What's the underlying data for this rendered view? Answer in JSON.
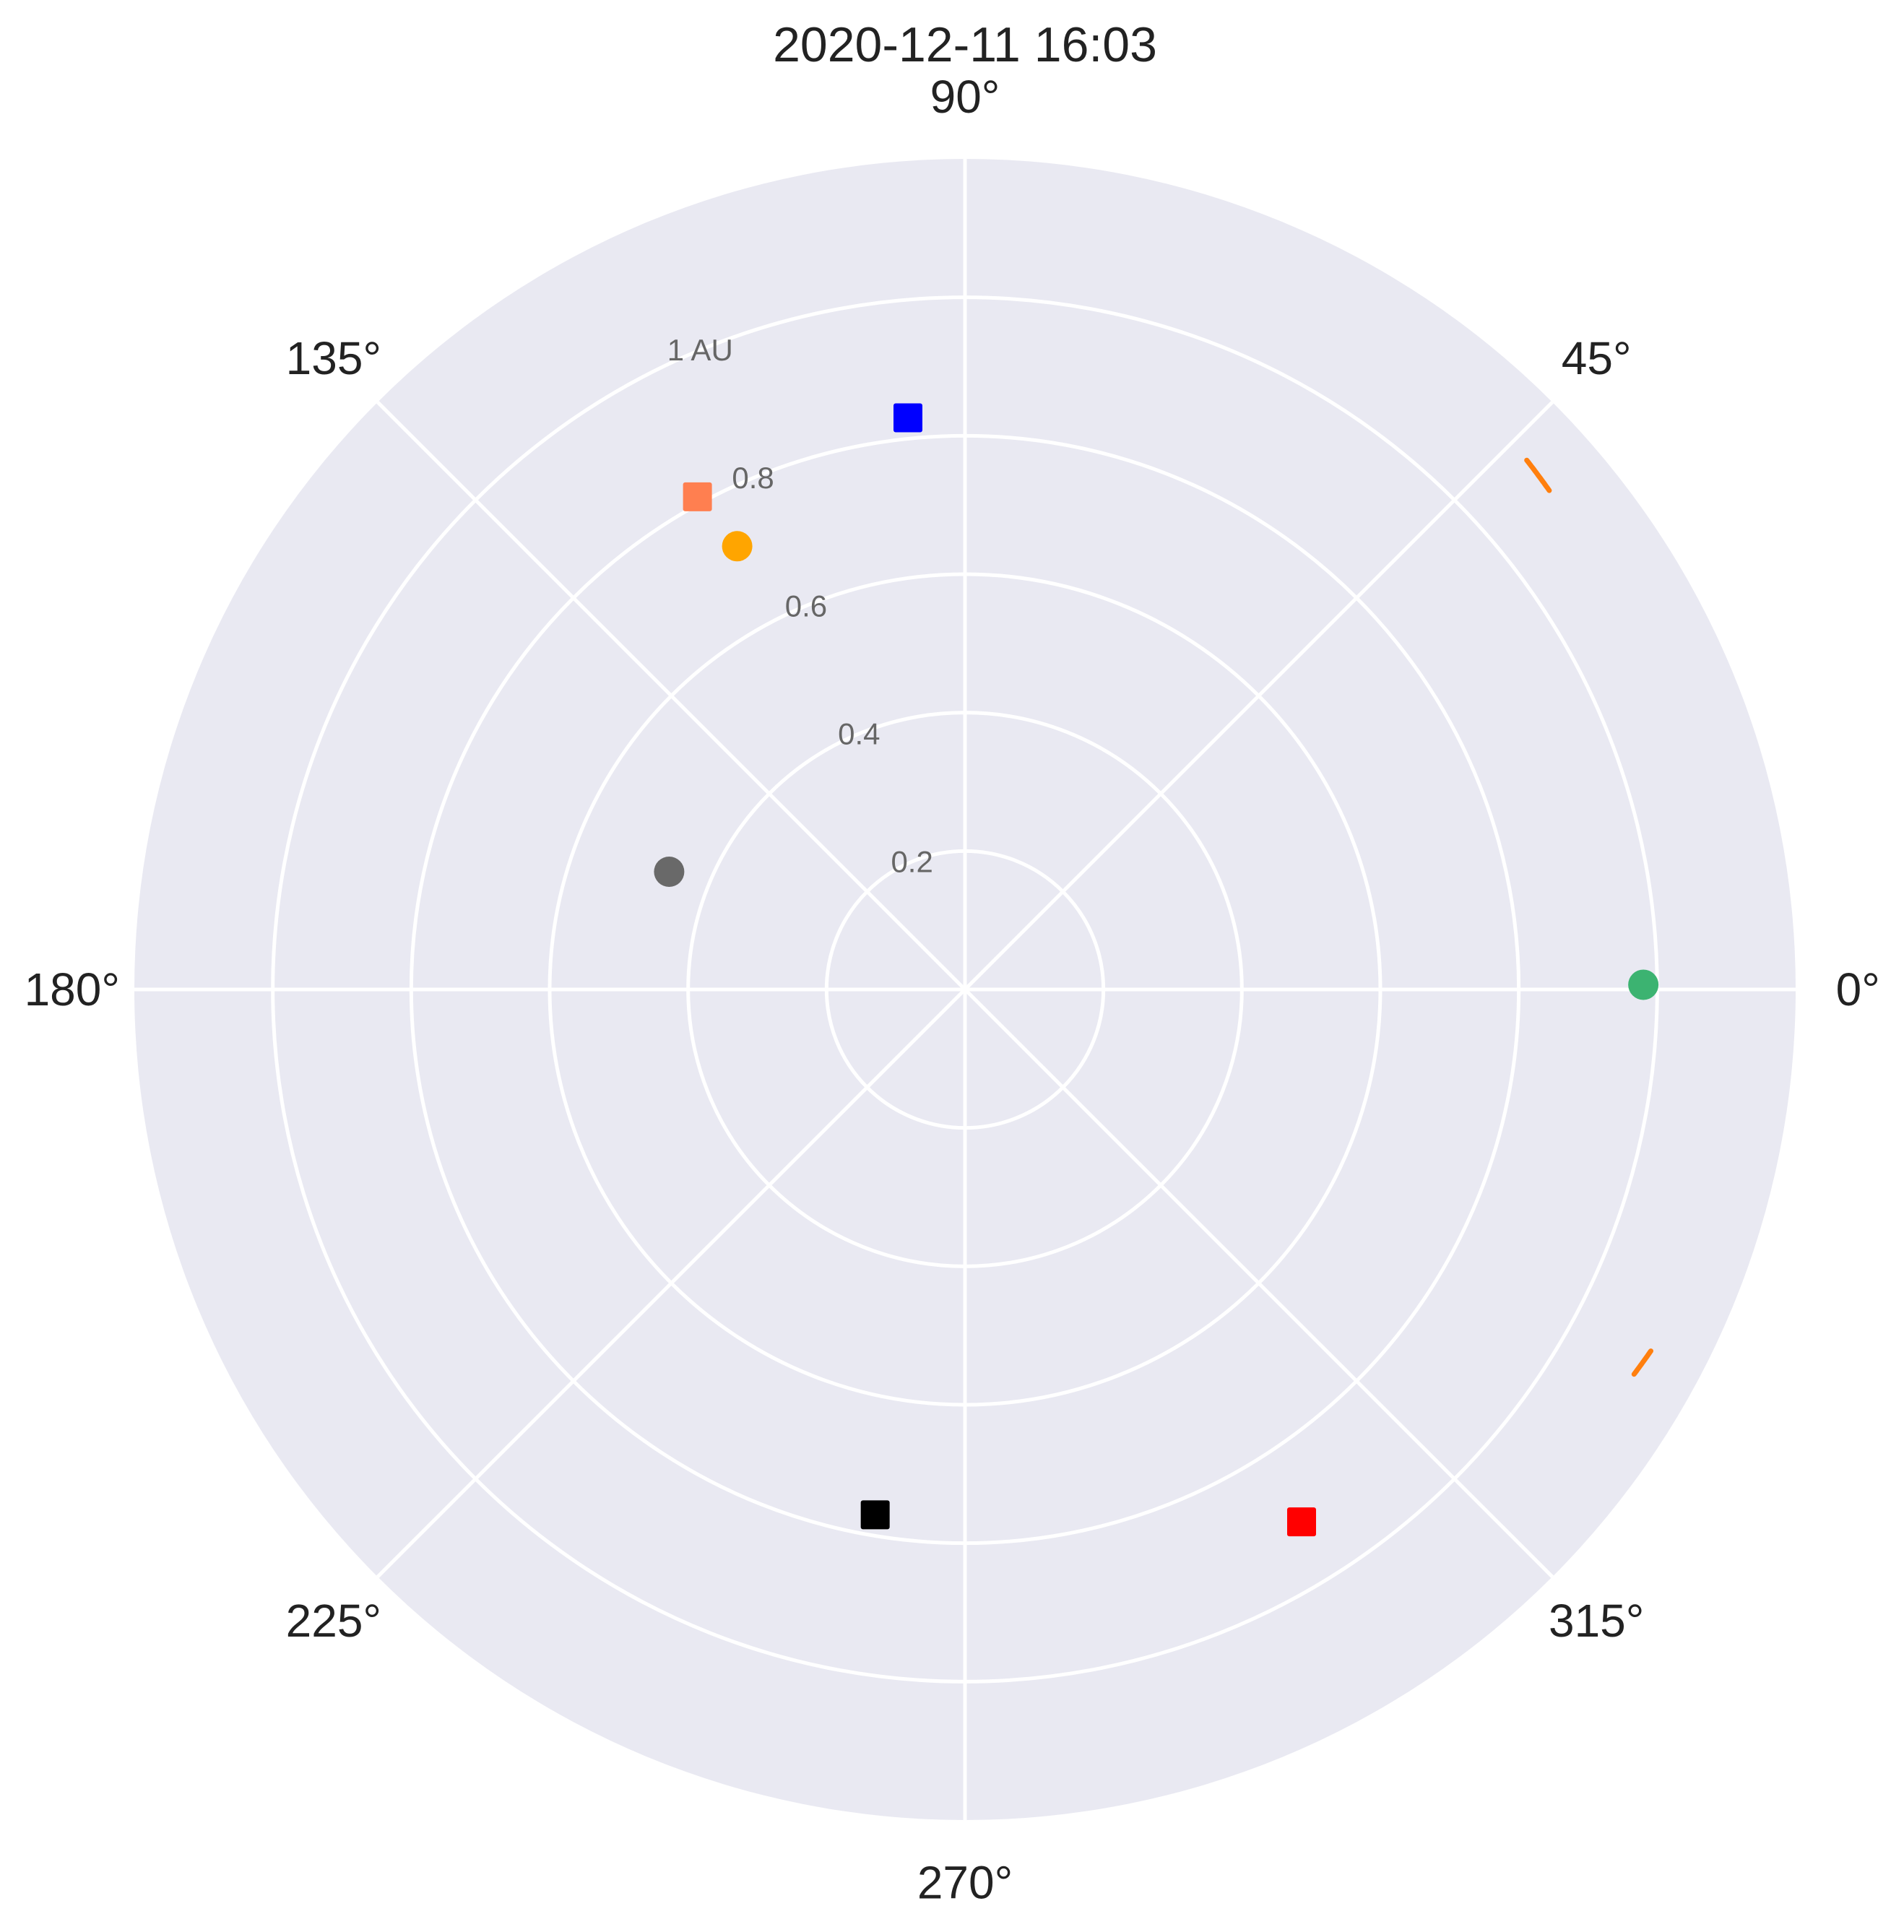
{
  "chart_data": {
    "type": "scatter",
    "projection": "polar",
    "title": "2020-12-11 16:03",
    "theta_unit": "degrees",
    "theta_zero": "east",
    "theta_direction": "counterclockwise",
    "rlim": [
      0,
      1.2
    ],
    "grid": true,
    "background_color": "#e9e9f2",
    "grid_color": "#ffffff",
    "angle_ticks": [
      0,
      45,
      90,
      135,
      180,
      225,
      270,
      315
    ],
    "angle_tick_labels": [
      "0°",
      "45°",
      "90°",
      "135°",
      "180°",
      "225°",
      "270°",
      "315°"
    ],
    "radial_ticks": [
      0.2,
      0.4,
      0.6,
      0.8,
      1.0
    ],
    "radial_tick_labels": [
      "0.2",
      "0.4",
      "0.6",
      "0.8",
      "1 AU"
    ],
    "radial_label_angle_deg": 112.5,
    "points": [
      {
        "theta": 0.4,
        "r": 0.98,
        "marker": "circle",
        "color": "#3cb371"
      },
      {
        "theta": 95.7,
        "r": 0.83,
        "marker": "square",
        "color": "#0000ff"
      },
      {
        "theta": 118.5,
        "r": 0.81,
        "marker": "square",
        "color": "#ff7f50"
      },
      {
        "theta": 117.2,
        "r": 0.72,
        "marker": "circle",
        "color": "#ffa500"
      },
      {
        "theta": 158.3,
        "r": 0.46,
        "marker": "circle",
        "color": "#696969"
      },
      {
        "theta": 260.3,
        "r": 0.77,
        "marker": "square",
        "color": "#000000"
      },
      {
        "theta": 302.3,
        "r": 0.91,
        "marker": "square",
        "color": "#ff0000"
      }
    ],
    "arcs": [
      {
        "color": "#ff7f0e",
        "r_start": 1.11,
        "r_end": 1.115,
        "theta_start": 40.5,
        "theta_end": 43.3
      },
      {
        "color": "#ff7f0e",
        "r_start": 1.115,
        "r_end": 1.12,
        "theta_start": 330.1,
        "theta_end": 332.2
      }
    ]
  }
}
